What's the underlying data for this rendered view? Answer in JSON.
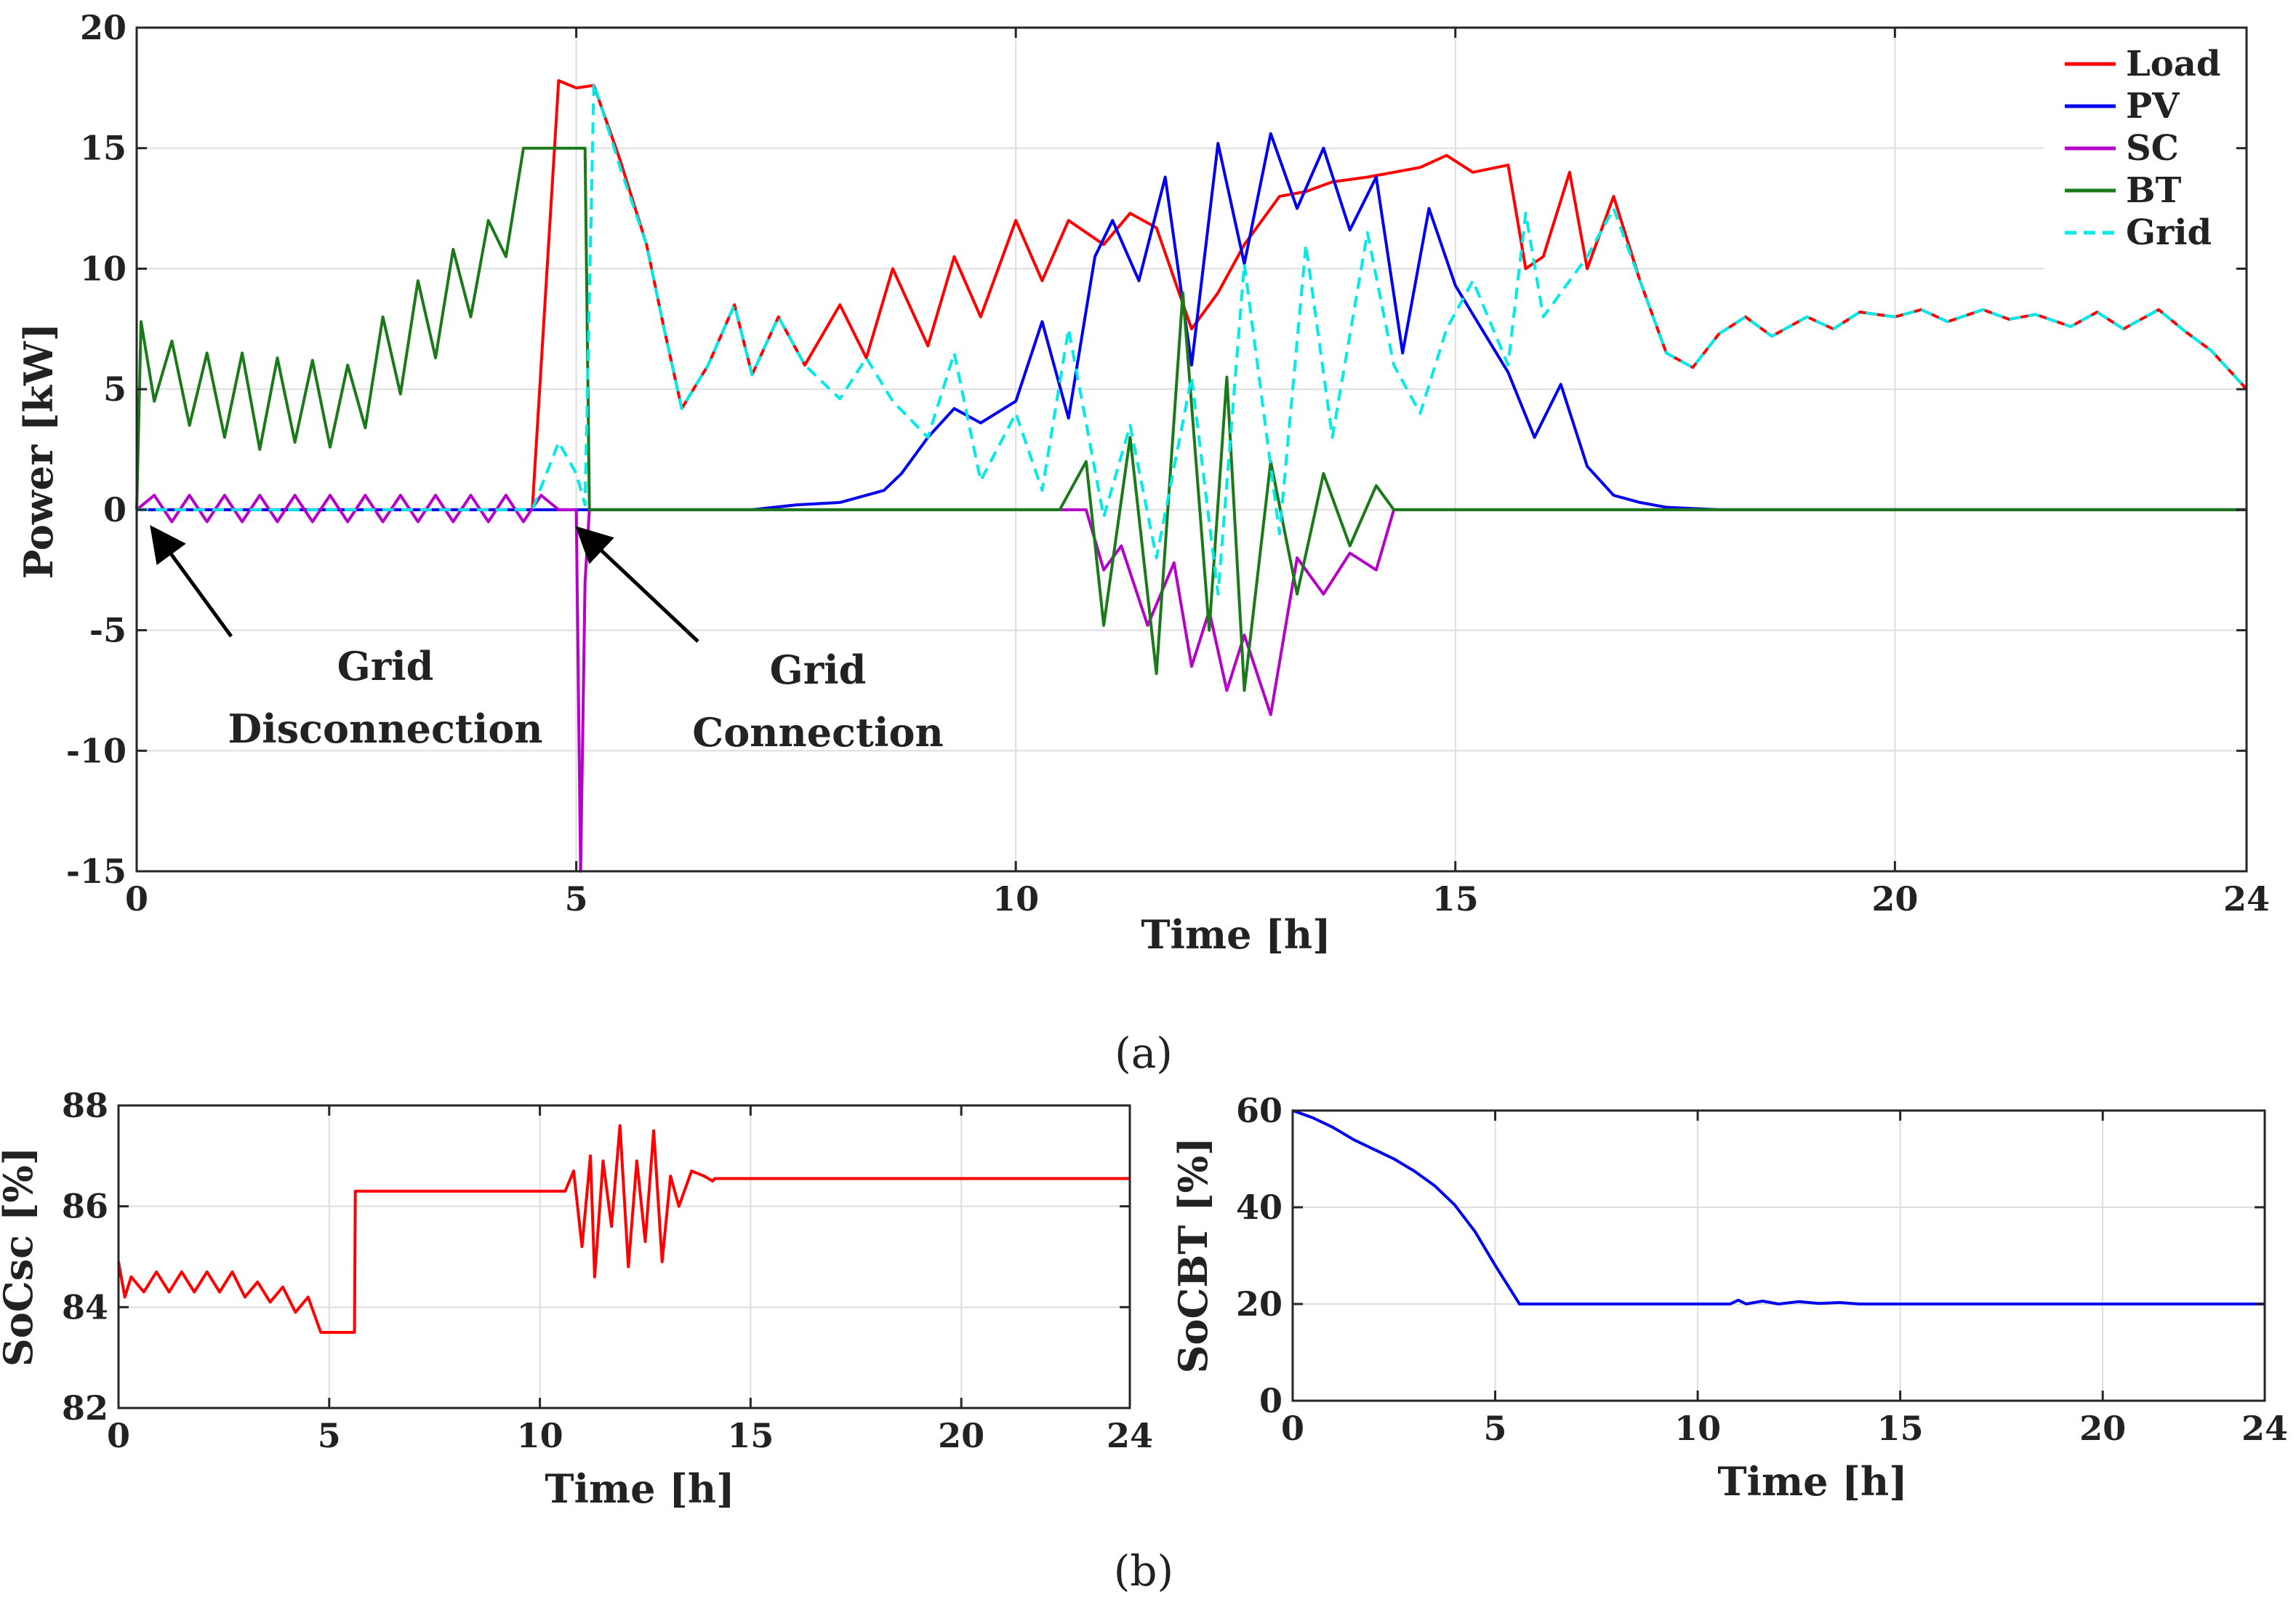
{
  "chart_data": [
    {
      "id": "a",
      "type": "line",
      "sublabel": "(a)",
      "xlabel": "Time [h]",
      "ylabel": "Power  [kW]",
      "xlim": [
        0,
        24
      ],
      "ylim": [
        -15,
        20
      ],
      "xticks": [
        0,
        5,
        10,
        15,
        20,
        24
      ],
      "yticks": [
        -15,
        -10,
        -5,
        0,
        5,
        10,
        15,
        20
      ],
      "grid": true,
      "legend_position": "top-right",
      "series": [
        {
          "name": "Load",
          "color": "#ff0000",
          "dash": "solid",
          "x": [
            0,
            0.3,
            0.6,
            0.9,
            1.2,
            1.5,
            1.8,
            2.1,
            2.4,
            2.7,
            3,
            3.3,
            3.6,
            3.9,
            4.2,
            4.5,
            4.8,
            5.0,
            5.2,
            5.5,
            5.8,
            6.0,
            6.2,
            6.5,
            6.8,
            7.0,
            7.3,
            7.6,
            8.0,
            8.3,
            8.6,
            9.0,
            9.3,
            9.6,
            10.0,
            10.3,
            10.6,
            11.0,
            11.3,
            11.6,
            12.0,
            12.3,
            12.6,
            13.0,
            13.3,
            13.6,
            14.0,
            14.3,
            14.6,
            14.9,
            15.2,
            15.6,
            15.8,
            16.0,
            16.3,
            16.5,
            16.8,
            17.1,
            17.4,
            17.7,
            18.0,
            18.3,
            18.6,
            19.0,
            19.3,
            19.6,
            20.0,
            20.3,
            20.6,
            21.0,
            21.3,
            21.6,
            22.0,
            22.3,
            22.6,
            23.0,
            23.3,
            23.6,
            24.0
          ],
          "y": [
            0,
            0,
            0,
            0,
            0,
            0,
            0,
            0,
            0,
            0,
            0,
            0,
            0,
            0,
            0,
            0,
            17.8,
            17.5,
            17.6,
            14.5,
            11,
            7.5,
            4.2,
            6,
            8.5,
            5.6,
            8,
            6,
            8.5,
            6.3,
            10,
            6.8,
            10.5,
            8,
            12,
            9.5,
            12,
            11,
            12.3,
            11.7,
            7.5,
            9,
            11,
            13,
            13.2,
            13.6,
            13.8,
            14,
            14.2,
            14.7,
            14,
            14.3,
            10,
            10.5,
            14,
            10,
            13,
            9.5,
            6.5,
            5.9,
            7.3,
            8,
            7.2,
            8,
            7.5,
            8.2,
            8,
            8.3,
            7.8,
            8.3,
            7.9,
            8.1,
            7.6,
            8.2,
            7.5,
            8.3,
            7.4,
            6.6,
            5
          ]
        },
        {
          "name": "PV",
          "color": "#0000ee",
          "dash": "solid",
          "x": [
            0,
            6.0,
            7.0,
            7.5,
            8.0,
            8.5,
            8.7,
            9.0,
            9.3,
            9.6,
            10.0,
            10.3,
            10.6,
            10.9,
            11.1,
            11.4,
            11.7,
            12.0,
            12.3,
            12.6,
            12.9,
            13.2,
            13.5,
            13.8,
            14.1,
            14.4,
            14.7,
            15.0,
            15.3,
            15.6,
            15.9,
            16.2,
            16.5,
            16.8,
            17.1,
            17.4,
            17.7,
            18.0,
            19.0,
            20.0,
            24.0
          ],
          "y": [
            0,
            0,
            0,
            0.2,
            0.3,
            0.8,
            1.5,
            3,
            4.2,
            3.6,
            4.5,
            7.8,
            3.8,
            10.5,
            12,
            9.5,
            13.8,
            6,
            15.2,
            10.2,
            15.6,
            12.5,
            15,
            11.6,
            13.8,
            6.5,
            12.5,
            9.3,
            7.5,
            5.7,
            3,
            5.2,
            1.8,
            0.6,
            0.3,
            0.1,
            0.05,
            0,
            0,
            0,
            0
          ]
        },
        {
          "name": "SC",
          "color": "#b400c8",
          "dash": "solid",
          "x": [
            0,
            0.2,
            0.4,
            0.6,
            0.8,
            1.0,
            1.2,
            1.4,
            1.6,
            1.8,
            2.0,
            2.2,
            2.4,
            2.6,
            2.8,
            3.0,
            3.2,
            3.4,
            3.6,
            3.8,
            4.0,
            4.2,
            4.4,
            4.6,
            4.8,
            5.0,
            5.05,
            5.1,
            5.15,
            5.3,
            6,
            8,
            10,
            10.8,
            11.0,
            11.2,
            11.5,
            11.8,
            12.0,
            12.2,
            12.4,
            12.6,
            12.9,
            13.2,
            13.5,
            13.8,
            14.1,
            14.3,
            15,
            20,
            24
          ],
          "y": [
            0,
            0.6,
            -0.5,
            0.6,
            -0.5,
            0.6,
            -0.5,
            0.6,
            -0.5,
            0.6,
            -0.5,
            0.6,
            -0.5,
            0.6,
            -0.5,
            0.6,
            -0.5,
            0.6,
            -0.5,
            0.6,
            -0.5,
            0.6,
            -0.5,
            0.6,
            0,
            0,
            -15,
            -3,
            0,
            0,
            0,
            0,
            0,
            0,
            -2.5,
            -1.5,
            -4.8,
            -2.2,
            -6.5,
            -4.2,
            -7.5,
            -5.2,
            -8.5,
            -2,
            -3.5,
            -1.8,
            -2.5,
            0,
            0,
            0,
            0
          ]
        },
        {
          "name": "BT",
          "color": "#1a7a1a",
          "dash": "solid",
          "x": [
            0,
            0.05,
            0.2,
            0.4,
            0.6,
            0.8,
            1.0,
            1.2,
            1.4,
            1.6,
            1.8,
            2.0,
            2.2,
            2.4,
            2.6,
            2.8,
            3.0,
            3.2,
            3.4,
            3.6,
            3.8,
            4.0,
            4.2,
            4.4,
            4.6,
            4.8,
            5.0,
            5.1,
            5.15,
            5.3,
            6,
            8,
            10,
            10.5,
            10.8,
            11.0,
            11.3,
            11.6,
            11.9,
            12.2,
            12.4,
            12.6,
            12.9,
            13.2,
            13.5,
            13.8,
            14.1,
            14.3,
            15,
            20,
            24
          ],
          "y": [
            0,
            7.8,
            4.5,
            7,
            3.5,
            6.5,
            3,
            6.5,
            2.5,
            6.3,
            2.8,
            6.2,
            2.6,
            6,
            3.4,
            8,
            4.8,
            9.5,
            6.3,
            10.8,
            8,
            12,
            10.5,
            15,
            15,
            15,
            15,
            15,
            0,
            0,
            0,
            0,
            0,
            0,
            2,
            -4.8,
            3,
            -6.8,
            9,
            -5,
            5.5,
            -7.5,
            2,
            -3.5,
            1.5,
            -1.5,
            1,
            0,
            0,
            0,
            0
          ]
        },
        {
          "name": "Grid",
          "color": "#00eaea",
          "dash": "dashed",
          "x": [
            0,
            4.0,
            4.5,
            4.8,
            5.0,
            5.1,
            5.2,
            5.5,
            5.8,
            6.0,
            6.2,
            6.5,
            6.8,
            7.0,
            7.3,
            7.6,
            8.0,
            8.3,
            8.6,
            9.0,
            9.3,
            9.6,
            10.0,
            10.3,
            10.6,
            11.0,
            11.3,
            11.6,
            12.0,
            12.3,
            12.6,
            13.0,
            13.3,
            13.6,
            14.0,
            14.3,
            14.6,
            14.9,
            15.2,
            15.6,
            15.8,
            16.0,
            16.3,
            16.5,
            16.8,
            17.1,
            17.4,
            17.7,
            18.0,
            18.3,
            18.6,
            19.0,
            19.3,
            19.6,
            20.0,
            20.3,
            20.6,
            21.0,
            21.3,
            21.6,
            22.0,
            22.3,
            22.6,
            23.0,
            23.3,
            23.6,
            24.0
          ],
          "y": [
            0,
            0,
            0,
            2.8,
            1.5,
            0.2,
            17.7,
            14.2,
            11,
            7.5,
            4.2,
            6,
            8.5,
            5.6,
            8,
            6,
            4.6,
            6.3,
            4.5,
            3,
            6.5,
            1.2,
            4,
            0.8,
            7.5,
            -0.3,
            3.5,
            -2,
            5.5,
            -3.5,
            10.2,
            -1,
            11,
            3,
            11.5,
            6,
            4,
            7.5,
            9.5,
            6,
            12.3,
            8,
            9.5,
            10.5,
            12.5,
            9.5,
            6.5,
            5.9,
            7.3,
            8,
            7.2,
            8,
            7.5,
            8.2,
            8,
            8.3,
            7.8,
            8.3,
            7.9,
            8.1,
            7.6,
            8.2,
            7.5,
            8.3,
            7.4,
            6.6,
            5
          ]
        }
      ],
      "annotations": [
        {
          "lines": [
            "Grid",
            "Disconnection"
          ],
          "arrow_to_x": 0.15,
          "arrow_to_y": -0.7
        },
        {
          "lines": [
            "Grid",
            "Connection"
          ],
          "arrow_to_x": 5.0,
          "arrow_to_y": -0.7
        }
      ]
    },
    {
      "id": "b1",
      "type": "line",
      "sublabel": "(b)",
      "xlabel": "Time [h]",
      "ylabel": "SoCsc [%]",
      "xlim": [
        0,
        24
      ],
      "ylim": [
        82,
        88
      ],
      "xticks": [
        0,
        5,
        10,
        15,
        20,
        24
      ],
      "yticks": [
        82,
        84,
        86,
        88
      ],
      "grid": true,
      "series": [
        {
          "name": "",
          "color": "#ff0000",
          "dash": "solid",
          "x": [
            0,
            0.15,
            0.3,
            0.6,
            0.9,
            1.2,
            1.5,
            1.8,
            2.1,
            2.4,
            2.7,
            3.0,
            3.3,
            3.6,
            3.9,
            4.2,
            4.5,
            4.8,
            5.0,
            5.3,
            5.6,
            5.62,
            6,
            8,
            10,
            10.6,
            10.8,
            11.0,
            11.2,
            11.3,
            11.5,
            11.7,
            11.9,
            12.1,
            12.3,
            12.5,
            12.7,
            12.9,
            13.1,
            13.3,
            13.6,
            13.9,
            14.1,
            14.15,
            15,
            20,
            24
          ],
          "y": [
            84.9,
            84.2,
            84.6,
            84.3,
            84.7,
            84.3,
            84.7,
            84.3,
            84.7,
            84.3,
            84.7,
            84.2,
            84.5,
            84.1,
            84.4,
            83.9,
            84.2,
            83.5,
            83.5,
            83.5,
            83.5,
            86.3,
            86.3,
            86.3,
            86.3,
            86.3,
            86.7,
            85.2,
            87,
            84.6,
            86.9,
            85.6,
            87.6,
            84.8,
            86.9,
            85.3,
            87.5,
            84.9,
            86.6,
            86,
            86.7,
            86.6,
            86.5,
            86.55,
            86.55,
            86.55,
            86.55
          ]
        }
      ]
    },
    {
      "id": "b2",
      "type": "line",
      "xlabel": "Time [h]",
      "ylabel": "SoCBT [%]",
      "xlim": [
        0,
        24
      ],
      "ylim": [
        0,
        60
      ],
      "xticks": [
        0,
        5,
        10,
        15,
        20,
        24
      ],
      "yticks": [
        0,
        20,
        40,
        60
      ],
      "grid": true,
      "series": [
        {
          "name": "",
          "color": "#0000ee",
          "dash": "solid",
          "x": [
            0,
            0.5,
            1.0,
            1.5,
            2.0,
            2.5,
            3.0,
            3.5,
            4.0,
            4.5,
            5.0,
            5.3,
            5.6,
            6,
            8,
            10,
            10.8,
            11.0,
            11.2,
            11.6,
            12.0,
            12.5,
            13.0,
            13.5,
            14,
            16,
            20,
            24
          ],
          "y": [
            60,
            58.5,
            56.5,
            54,
            52,
            50,
            47.5,
            44.5,
            40.5,
            35,
            28,
            24,
            20,
            20,
            20,
            20,
            20,
            20.8,
            20,
            20.6,
            20,
            20.5,
            20.1,
            20.3,
            20,
            20,
            20,
            20
          ]
        }
      ]
    }
  ]
}
